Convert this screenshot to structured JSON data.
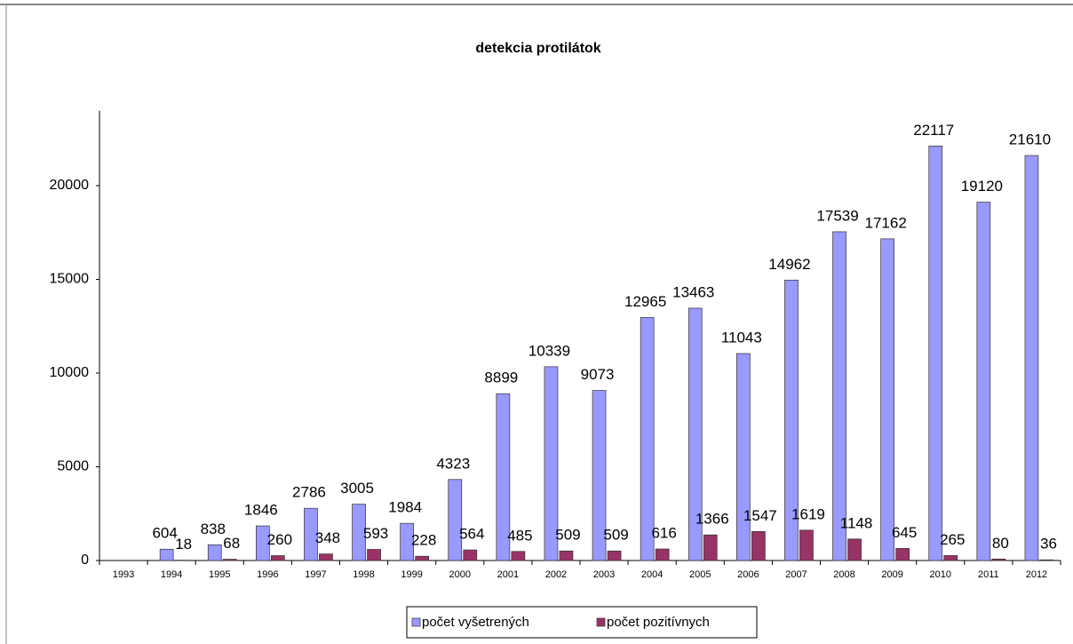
{
  "chart_data": {
    "type": "bar",
    "title": "detekcia protilátok",
    "categories": [
      "1993",
      "1994",
      "1995",
      "1996",
      "1997",
      "1998",
      "1999",
      "2000",
      "2001",
      "2002",
      "2003",
      "2004",
      "2005",
      "2006",
      "2007",
      "2008",
      "2009",
      "2010",
      "2011",
      "2012"
    ],
    "series": [
      {
        "name": "počet vyšetrených",
        "color": "#9999ff",
        "values": [
          null,
          604,
          838,
          1846,
          2786,
          3005,
          1984,
          4323,
          8899,
          10339,
          9073,
          12965,
          13463,
          11043,
          14962,
          17539,
          17162,
          22117,
          19120,
          21610
        ]
      },
      {
        "name": "počet pozitívnych",
        "color": "#993366",
        "values": [
          null,
          18,
          68,
          260,
          348,
          593,
          228,
          564,
          485,
          509,
          509,
          616,
          1366,
          1547,
          1619,
          1148,
          645,
          265,
          80,
          36
        ]
      }
    ],
    "ylim": [
      0,
      24000
    ],
    "yticks": [
      0,
      5000,
      10000,
      15000,
      20000
    ],
    "grid": false,
    "legend": "bottom"
  }
}
